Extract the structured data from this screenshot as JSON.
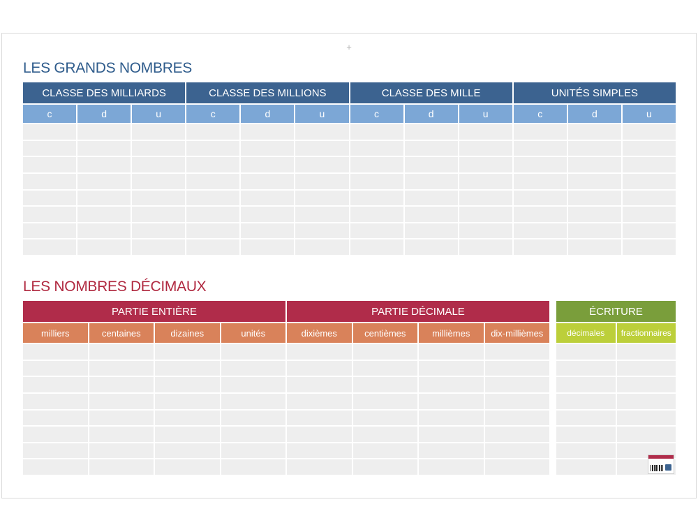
{
  "grands_nombres": {
    "title": "LES GRANDS NOMBRES",
    "classes": [
      "CLASSE DES MILLIARDS",
      "CLASSE DES MILLIONS",
      "CLASSE DES MILLE",
      "UNITÉS SIMPLES"
    ],
    "digits": [
      "c",
      "d",
      "u",
      "c",
      "d",
      "u",
      "c",
      "d",
      "u",
      "c",
      "d",
      "u"
    ],
    "empty_rows": 8
  },
  "nombres_decimaux": {
    "title": "LES NOMBRES DÉCIMAUX",
    "parts": [
      "PARTIE ENTIÈRE",
      "PARTIE DÉCIMALE"
    ],
    "columns": [
      "milliers",
      "centaines",
      "dizaines",
      "unités",
      "dixièmes",
      "centièmes",
      "millièmes",
      "dix-millièmes"
    ],
    "empty_rows": 8
  },
  "ecriture": {
    "title": "ÉCRITURE",
    "columns": [
      "décimales",
      "fractionnaires"
    ],
    "empty_rows": 8
  },
  "colors": {
    "title_blue": "#2f5c8c",
    "class_header": "#3c6390",
    "digit_header": "#7ca7d6",
    "title_red": "#b02940",
    "part_header": "#b02c4a",
    "column_header": "#d9825a",
    "ecriture_header": "#7a9e3b",
    "ecriture_columns": "#bccf3a",
    "empty_cell": "#eeeeee"
  },
  "icons": [
    "crosshair-icon",
    "barcode-icon",
    "publisher-logo-icon"
  ]
}
